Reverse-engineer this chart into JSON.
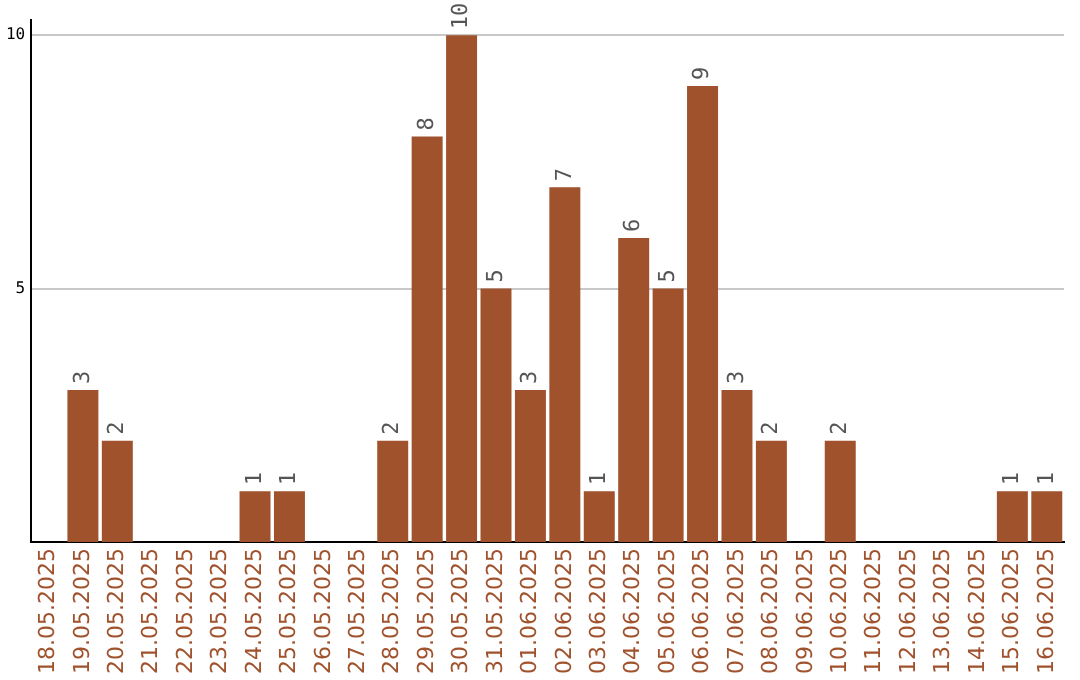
{
  "chart_data": {
    "type": "bar",
    "categories": [
      "18.05.2025",
      "19.05.2025",
      "20.05.2025",
      "21.05.2025",
      "22.05.2025",
      "23.05.2025",
      "24.05.2025",
      "25.05.2025",
      "26.05.2025",
      "27.05.2025",
      "28.05.2025",
      "29.05.2025",
      "30.05.2025",
      "31.05.2025",
      "01.06.2025",
      "02.06.2025",
      "03.06.2025",
      "04.06.2025",
      "05.06.2025",
      "06.06.2025",
      "07.06.2025",
      "08.06.2025",
      "09.06.2025",
      "10.06.2025",
      "11.06.2025",
      "12.06.2025",
      "13.06.2025",
      "14.06.2025",
      "15.06.2025",
      "16.06.2025"
    ],
    "values": [
      0,
      3,
      2,
      0,
      0,
      0,
      1,
      1,
      0,
      0,
      2,
      8,
      10,
      5,
      3,
      7,
      1,
      6,
      5,
      9,
      3,
      2,
      0,
      2,
      0,
      0,
      0,
      0,
      1,
      1
    ],
    "value_labels": [
      null,
      "3",
      "2",
      null,
      null,
      null,
      "1",
      "1",
      null,
      null,
      "2",
      "8",
      "10",
      "5",
      "3",
      "7",
      "1",
      "6",
      "5",
      "9",
      "3",
      "2",
      null,
      "2",
      null,
      null,
      null,
      null,
      "1",
      "1"
    ],
    "color": "#a0522d",
    "ylim": [
      0,
      10.3
    ],
    "yticks": [
      5,
      10
    ],
    "grid": "y"
  }
}
